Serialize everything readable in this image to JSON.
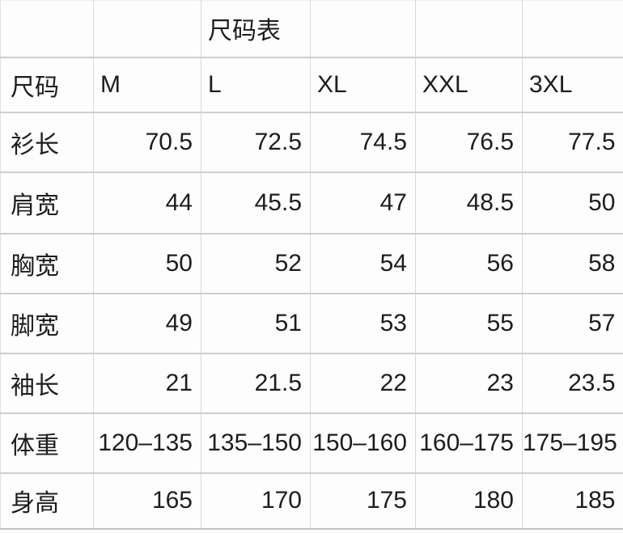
{
  "colors": {
    "background": "#fdfdfd",
    "text": "#1d1d1f",
    "grid_horizontal": "#cecece",
    "grid_vertical": "#d9d9d9"
  },
  "chart_data": {
    "type": "table",
    "title": "尺码表",
    "columns": [
      "尺码",
      "M",
      "L",
      "XL",
      "XXL",
      "3XL"
    ],
    "row_labels": [
      "衫长",
      "肩宽",
      "胸宽",
      "脚宽",
      "袖长",
      "体重",
      "身高"
    ],
    "rows": [
      [
        "衫长",
        "70.5",
        "72.5",
        "74.5",
        "76.5",
        "77.5"
      ],
      [
        "肩宽",
        "44",
        "45.5",
        "47",
        "48.5",
        "50"
      ],
      [
        "胸宽",
        "50",
        "52",
        "54",
        "56",
        "58"
      ],
      [
        "脚宽",
        "49",
        "51",
        "53",
        "55",
        "57"
      ],
      [
        "袖长",
        "21",
        "21.5",
        "22",
        "23",
        "23.5"
      ],
      [
        "体重",
        "120–135",
        "135–150",
        "150–160",
        "160–175",
        "175–195"
      ],
      [
        "身高",
        "165",
        "170",
        "175",
        "180",
        "185"
      ]
    ]
  }
}
